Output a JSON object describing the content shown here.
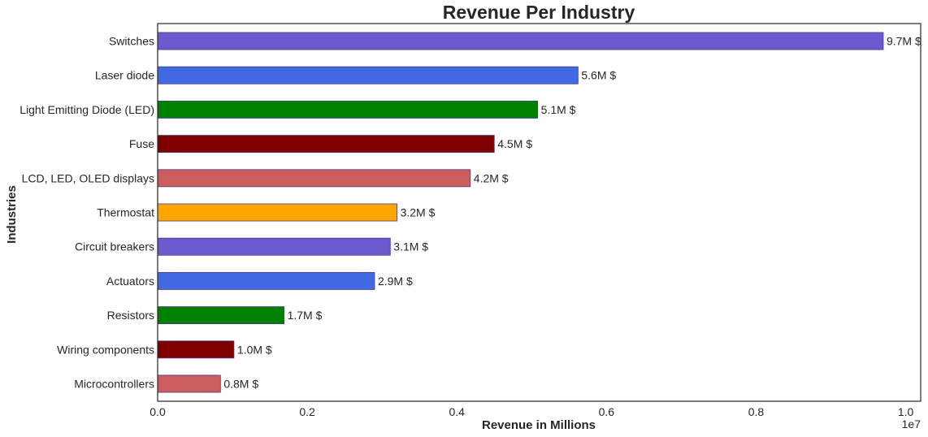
{
  "chart_data": {
    "type": "bar",
    "orientation": "horizontal",
    "title": "Revenue Per Industry",
    "xlabel": "Revenue in Millions",
    "ylabel": "Industries",
    "xlim": [
      0,
      10200000
    ],
    "x_ticks": [
      0,
      2000000,
      4000000,
      6000000,
      8000000,
      10000000
    ],
    "x_tick_labels": [
      "0.0",
      "0.2",
      "0.4",
      "0.6",
      "0.8",
      "1.0"
    ],
    "x_offset_text": "1e7",
    "grid": false,
    "categories": [
      "Switches",
      "Laser diode",
      "Light Emitting Diode (LED)",
      "Fuse",
      "LCD, LED, OLED displays",
      "Thermostat",
      "Circuit breakers",
      "Actuators",
      "Resistors",
      "Wiring components",
      "Microcontrollers"
    ],
    "values": [
      9700000,
      5620000,
      5080000,
      4500000,
      4180000,
      3200000,
      3110000,
      2900000,
      1690000,
      1020000,
      840000
    ],
    "data_labels": [
      "9.7M $",
      "5.6M $",
      "5.1M $",
      "4.5M $",
      "4.2M $",
      "3.2M $",
      "3.1M $",
      "2.9M $",
      "1.7M $",
      "1.0M $",
      "0.8M $"
    ],
    "colors": [
      "#6a5acd",
      "#4169e1",
      "#008000",
      "#800000",
      "#cd5c5c",
      "#ffa500",
      "#6a5acd",
      "#4169e1",
      "#008000",
      "#800000",
      "#cd5c5c"
    ],
    "bar_edge_color": "#483d8b"
  }
}
